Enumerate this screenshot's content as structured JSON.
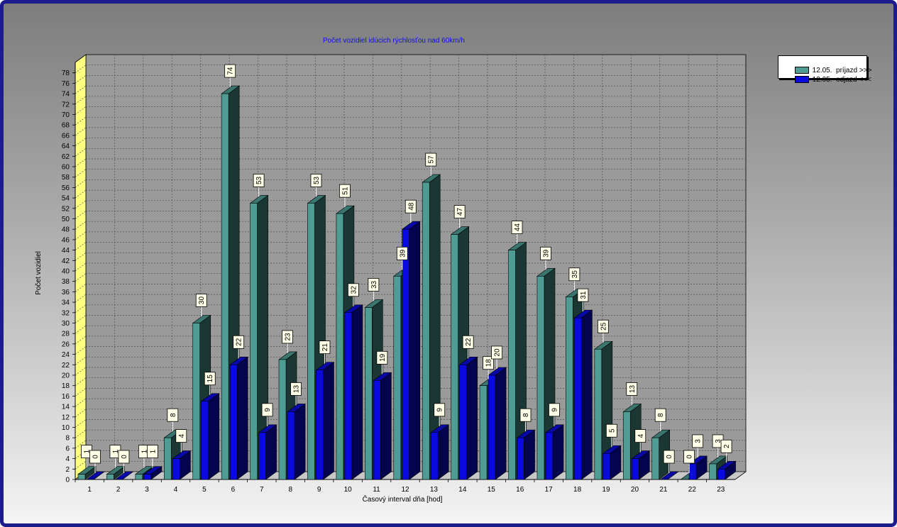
{
  "chart_data": {
    "type": "bar",
    "title": "Počet vozidiel idúcich rýchlosťou nad 60km/h",
    "xlabel": "Časový interval dňa [hod]",
    "ylabel": "Počet vozidiel",
    "ylim": [
      0,
      80
    ],
    "yticks": [
      "0",
      "2",
      "4",
      "6",
      "8",
      "10",
      "12",
      "14",
      "16",
      "18",
      "20",
      "22",
      "24",
      "26",
      "28",
      "30",
      "32",
      "34",
      "36",
      "38",
      "40",
      "42",
      "44",
      "46",
      "48",
      "50",
      "52",
      "54",
      "56",
      "58",
      "60",
      "62",
      "64",
      "66",
      "68",
      "70",
      "72",
      "74",
      "76",
      "78"
    ],
    "categories": [
      "1",
      "2",
      "3",
      "4",
      "5",
      "6",
      "7",
      "8",
      "9",
      "10",
      "11",
      "12",
      "13",
      "14",
      "15",
      "16",
      "17",
      "18",
      "19",
      "20",
      "21",
      "22",
      "23"
    ],
    "grid": true,
    "legend_position": "top-right",
    "series": [
      {
        "name": "12.05.  príjazd >>>",
        "color": "#4e9c94",
        "labels": [
          "1",
          "1",
          "1",
          "8",
          "30",
          "74",
          "53",
          "23",
          "53",
          "51",
          "33",
          "39",
          "57",
          "47",
          "18",
          "44",
          "39",
          "35",
          "25",
          "13",
          "8",
          "0",
          "3"
        ],
        "values": [
          1,
          1,
          1,
          8,
          30,
          74,
          53,
          23,
          53,
          51,
          33,
          39,
          57,
          47,
          18,
          44,
          39,
          35,
          25,
          13,
          8,
          0,
          3
        ]
      },
      {
        "name": "12.05.  odjazd <<<",
        "color": "#0a0ae0",
        "labels": [
          "0",
          "0",
          "1",
          "4",
          "15",
          "22",
          "9",
          "13",
          "21",
          "32",
          "19",
          "48",
          "9",
          "22",
          "20",
          "8",
          "9",
          "31",
          "5",
          "4",
          "0",
          "3",
          "2"
        ],
        "values": [
          0,
          0,
          1,
          4,
          15,
          22,
          9,
          13,
          21,
          32,
          19,
          48,
          9,
          22,
          20,
          8,
          9,
          31,
          5,
          4,
          0,
          3,
          2
        ]
      }
    ]
  }
}
